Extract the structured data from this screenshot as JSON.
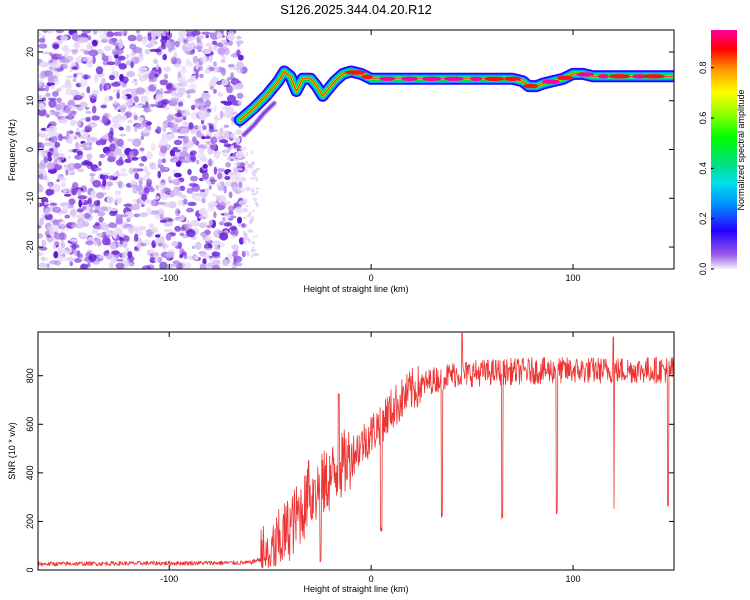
{
  "figure_title": "S126.2025.344.04.20.R12",
  "chart_data": [
    {
      "type": "heatmap",
      "title": "S126.2025.344.04.20.R12",
      "xlabel": "Height of straight line (km)",
      "ylabel": "Frequency (Hz)",
      "xlim": [
        -165,
        150
      ],
      "ylim": [
        -24.5,
        24.5
      ],
      "xticks": [
        -100,
        0,
        100
      ],
      "yticks": [
        20,
        10,
        0,
        -10,
        -20
      ],
      "colorbar": {
        "label": "Normalized spectral amplitude",
        "range": [
          0.0,
          0.95
        ],
        "ticks": [
          0.0,
          0.2,
          0.4,
          0.6,
          0.8
        ]
      },
      "noise_region_x": [
        -165,
        -63
      ],
      "frequency_ridge": {
        "x": [
          -65,
          -58,
          -52,
          -46,
          -43,
          -40,
          -37,
          -34,
          -30,
          -27,
          -24,
          -21,
          -18,
          -14,
          -10,
          -5,
          0,
          10,
          20,
          30,
          40,
          50,
          60,
          70,
          75,
          78,
          82,
          85,
          90,
          95,
          100,
          105,
          110,
          120,
          130,
          140,
          150
        ],
        "y": [
          6,
          8.5,
          11,
          14,
          16,
          15,
          12,
          14.5,
          14.5,
          13,
          11,
          12.5,
          14,
          15.5,
          16,
          15.5,
          14.5,
          14.5,
          14.5,
          14.5,
          14.5,
          14.5,
          14.5,
          14.5,
          14,
          13,
          13,
          13.5,
          14,
          14.5,
          15.5,
          15.5,
          15,
          15,
          15,
          15,
          15
        ]
      },
      "secondary_ridge": {
        "x": [
          -63,
          -58,
          -53,
          -48
        ],
        "y": [
          3,
          5,
          7.5,
          9.5
        ]
      }
    },
    {
      "type": "line",
      "xlabel": "Height of straight line (km)",
      "ylabel": "SNR (10 * v/v)",
      "xlim": [
        -165,
        150
      ],
      "ylim": [
        0,
        980
      ],
      "xticks": [
        -100,
        0,
        100
      ],
      "yticks": [
        0,
        200,
        400,
        600,
        800
      ],
      "series": [
        {
          "name": "SNR",
          "color": "#ee3333",
          "baseline_until_x": -55,
          "baseline_value": 25,
          "envelope": {
            "x": [
              -165,
              -60,
              -50,
              -40,
              -30,
              -20,
              -10,
              0,
              10,
              20,
              30,
              40,
              50,
              60,
              80,
              100,
              120,
              150
            ],
            "y": [
              25,
              30,
              60,
              180,
              300,
              380,
              470,
              560,
              660,
              740,
              780,
              805,
              810,
              815,
              820,
              822,
              822,
              825
            ]
          },
          "spikes_up": [
            {
              "x": -31,
              "y": 450
            },
            {
              "x": -28,
              "y": 370
            },
            {
              "x": -16,
              "y": 725
            },
            {
              "x": 45,
              "y": 975
            },
            {
              "x": 120,
              "y": 960
            }
          ],
          "dips": [
            {
              "x": -25,
              "y": 30
            },
            {
              "x": 5,
              "y": 150
            },
            {
              "x": 35,
              "y": 215
            },
            {
              "x": 65,
              "y": 205
            },
            {
              "x": 92,
              "y": 225
            },
            {
              "x": 120,
              "y": 235
            },
            {
              "x": 147,
              "y": 250
            }
          ]
        }
      ]
    }
  ],
  "colors": {
    "line": "#ee3333",
    "noise": "#9b4fe6",
    "axis": "#000000"
  }
}
